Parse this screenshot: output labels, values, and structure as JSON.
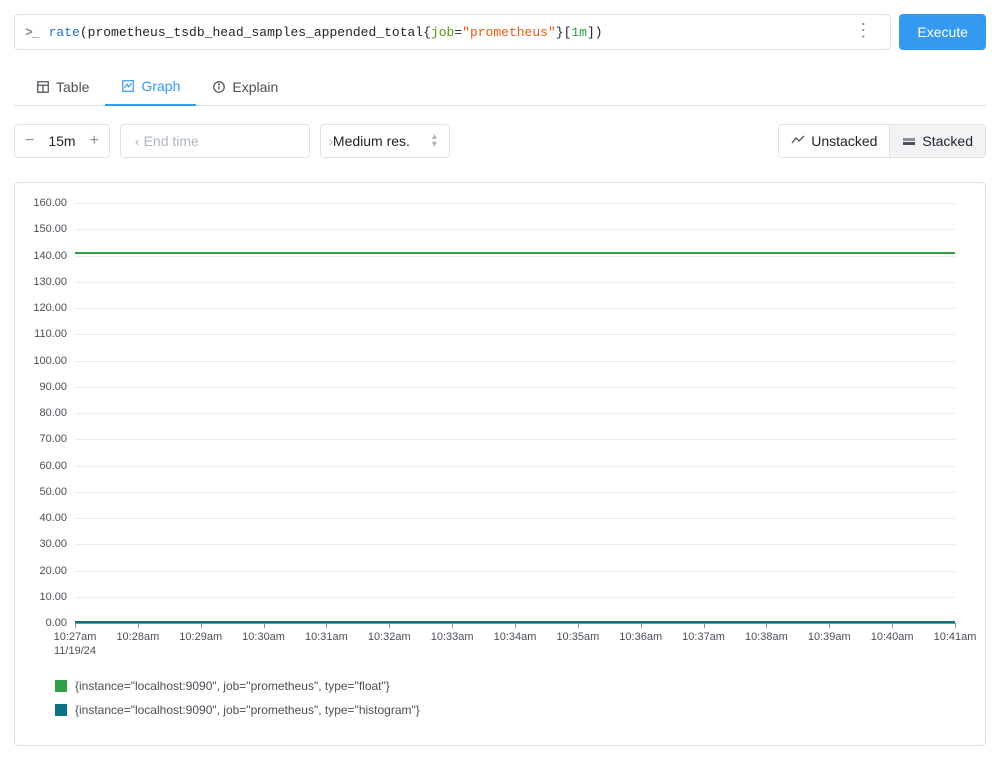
{
  "query": {
    "fn": "rate",
    "metric": "prometheus_tsdb_head_samples_appended_total",
    "label_key": "job",
    "label_val": "\"prometheus\"",
    "range": "1m",
    "full_raw": "rate(prometheus_tsdb_head_samples_appended_total{job=\"prometheus\"}[1m])"
  },
  "execute_label": "Execute",
  "tabs": {
    "table": "Table",
    "graph": "Graph",
    "explain": "Explain",
    "active": "graph"
  },
  "controls": {
    "range_value": "15m",
    "endtime_placeholder": "End time",
    "resolution_label": "Medium res.",
    "unstacked_label": "Unstacked",
    "stacked_label": "Stacked"
  },
  "chart": {
    "type": "line",
    "background_color": "#ffffff",
    "grid_color": "#e9ecef",
    "axis_color": "#868e96",
    "label_fontsize": 11,
    "label_color": "#495057",
    "ylim": [
      0,
      160
    ],
    "ytick_step": 10,
    "yticks": [
      "0.00",
      "10.00",
      "20.00",
      "30.00",
      "40.00",
      "50.00",
      "60.00",
      "70.00",
      "80.00",
      "90.00",
      "100.00",
      "110.00",
      "120.00",
      "130.00",
      "140.00",
      "150.00",
      "160.00"
    ],
    "xticks": [
      "10:27am",
      "10:28am",
      "10:29am",
      "10:30am",
      "10:31am",
      "10:32am",
      "10:33am",
      "10:34am",
      "10:35am",
      "10:36am",
      "10:37am",
      "10:38am",
      "10:39am",
      "10:40am",
      "10:41am"
    ],
    "x_date": "11/19/24",
    "series": [
      {
        "label": "{instance=\"localhost:9090\", job=\"prometheus\", type=\"float\"}",
        "color": "#2f9e44",
        "value": 141
      },
      {
        "label": "{instance=\"localhost:9090\", job=\"prometheus\", type=\"histogram\"}",
        "color": "#0b7285",
        "value": 0.4
      }
    ]
  }
}
